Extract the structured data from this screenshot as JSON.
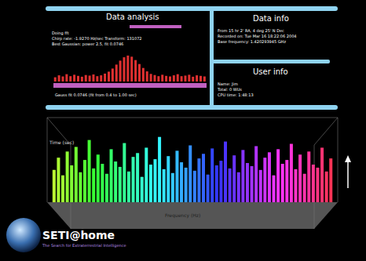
{
  "data_analysis": {
    "title": "Data analysis",
    "lines": [
      "Doing fft",
      "Chirp rate: -1.9270 Hz/sec  Transform: 131072",
      "Best Gaussian: power 2.5, fit 0.0746"
    ],
    "footer": "Gauss fit 0.0746  (fit from 0.4 to 1.00 sec)"
  },
  "data_info": {
    "title": "Data info",
    "lines": [
      "From 15 hr 2' RA, 4 deg 25' N Dec",
      "Recorded on: Tue Mar 16 18:22:06 2004",
      "Base frequency: 1.420293945 GHz"
    ]
  },
  "user_info": {
    "title": "User info",
    "lines": [
      "Name: Jim",
      "Total: 0 WUs",
      "CPU time: 1:48:13"
    ]
  },
  "logo": {
    "title": "SETI@home",
    "subtitle": "The Search for Extraterrestrial Intelligence"
  },
  "chart_data": [
    {
      "type": "bar",
      "color": "#e03030",
      "values": [
        1.5,
        2.2,
        1.8,
        2.6,
        1.9,
        2.4,
        2.0,
        1.7,
        2.3,
        2.1,
        2.5,
        1.9,
        2.2,
        2.8,
        3.5,
        4.6,
        6.0,
        7.4,
        8.6,
        9.2,
        8.8,
        7.6,
        6.2,
        4.8,
        3.6,
        2.7,
        2.3,
        1.9,
        2.4,
        2.0,
        1.8,
        2.2,
        2.6,
        1.9,
        2.1,
        2.4,
        1.7,
        2.2,
        2.0,
        1.8
      ],
      "ylim": [
        0,
        10
      ],
      "tick_labels": false
    },
    {
      "type": "bar",
      "x_label": "Frequency (Hz)",
      "y_label": "Time (sec)",
      "values": [
        42,
        58,
        35,
        66,
        48,
        72,
        39,
        55,
        81,
        44,
        62,
        50,
        37,
        69,
        53,
        46,
        77,
        40,
        59,
        64,
        33,
        71,
        49,
        56,
        85,
        43,
        60,
        38,
        67,
        52,
        45,
        74,
        41,
        57,
        63,
        36,
        70,
        48,
        54,
        79,
        44,
        61,
        39,
        68,
        51,
        47,
        73,
        42,
        58,
        65,
        35,
        69,
        50,
        55,
        76,
        43,
        62,
        37,
        66,
        49,
        45,
        71,
        40,
        57
      ],
      "ylim": [
        0,
        100
      ],
      "tick_labels": false
    }
  ]
}
